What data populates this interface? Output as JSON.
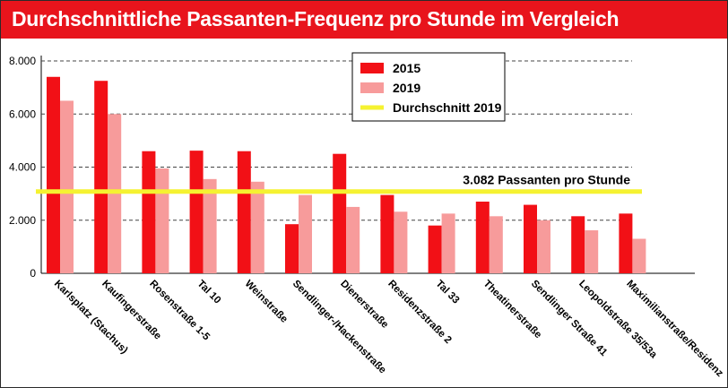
{
  "title": "Durchschnittliche Passanten-Frequenz pro Stunde im Vergleich",
  "colors": {
    "title_bar": "#e8141c",
    "series_2015": "#f21016",
    "series_2019": "#f79b9b",
    "average_line": "#f5f231",
    "gridline": "#444444"
  },
  "chart_data": {
    "type": "bar",
    "title": "Durchschnittliche Passanten-Frequenz pro Stunde im Vergleich",
    "xlabel": "",
    "ylabel": "",
    "ylim": [
      0,
      8000
    ],
    "yticks": [
      0,
      2000,
      4000,
      6000,
      8000
    ],
    "ytick_labels": [
      "0",
      "2.000",
      "4.000",
      "6.000",
      "8.000"
    ],
    "grid": "dashed horizontal",
    "legend_position": "top-center",
    "categories": [
      "Karlsplatz (Stachus)",
      "Kaufingerstraße",
      "Rosenstraße 1-5",
      "Tal 10",
      "Weinstraße",
      "Sendlinger-/Hackenstraße",
      "Dienerstraße",
      "Residenzstraße 2",
      "Tal 33",
      "Theatinerstraße",
      "Sendlinger Straße 41",
      "Leopoldstraße 35/53a",
      "Maximilianstraße/Residenz"
    ],
    "series": [
      {
        "name": "2015",
        "values": [
          7400,
          7250,
          4600,
          4620,
          4600,
          1850,
          4500,
          2950,
          1800,
          2700,
          2580,
          2150,
          2250
        ]
      },
      {
        "name": "2019",
        "values": [
          6500,
          6000,
          3950,
          3550,
          3450,
          2950,
          2500,
          2320,
          2250,
          2150,
          2000,
          1620,
          1300
        ]
      }
    ],
    "reference_line": {
      "name": "Durchschnitt 2019",
      "value": 3082,
      "label": "3.082 Passanten pro Stunde"
    }
  }
}
